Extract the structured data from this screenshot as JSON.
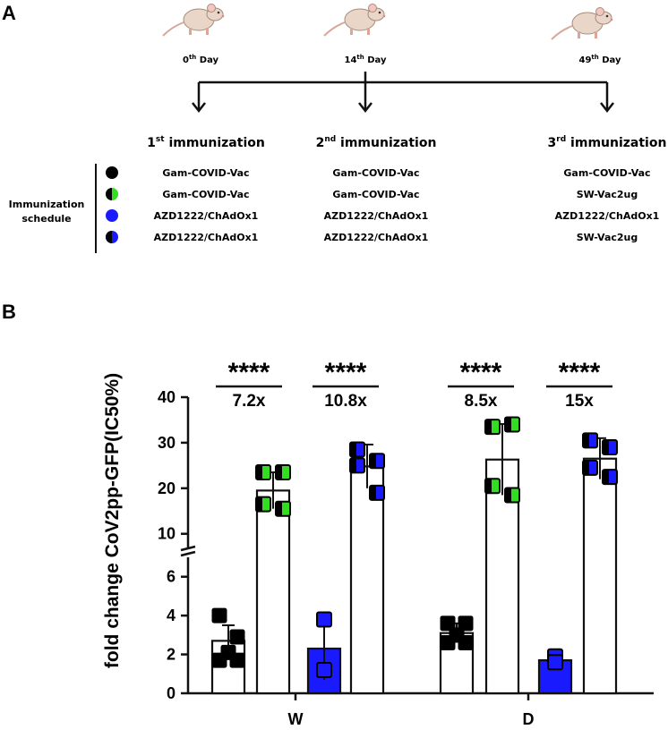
{
  "panel_a": {
    "label": "A",
    "days": [
      {
        "num": "0",
        "sup": "th",
        "rest": " Day"
      },
      {
        "num": "14",
        "sup": "th",
        "rest": " Day"
      },
      {
        "num": "49",
        "sup": "th",
        "rest": " Day"
      }
    ],
    "immunizations": [
      {
        "num": "1",
        "sup": "st",
        "rest": " immunization"
      },
      {
        "num": "2",
        "sup": "nd",
        "rest": " immunization"
      },
      {
        "num": "3",
        "sup": "rd",
        "rest": " immunization"
      }
    ],
    "schedule_label_line1": "Immunization",
    "schedule_label_line2": "schedule",
    "rows": [
      {
        "marker": "black",
        "colors": [
          "#000000",
          "#000000"
        ],
        "first": "Gam-COVID-Vac",
        "second": "Gam-COVID-Vac",
        "third": "Gam-COVID-Vac"
      },
      {
        "marker": "black-green",
        "colors": [
          "#000000",
          "#33dd22"
        ],
        "first": "Gam-COVID-Vac",
        "second": "Gam-COVID-Vac",
        "third": "SW-Vac2ug"
      },
      {
        "marker": "blue",
        "colors": [
          "#1a1aff",
          "#1a1aff"
        ],
        "first": "AZD1222/ChAdOx1",
        "second": "AZD1222/ChAdOx1",
        "third": "AZD1222/ChAdOx1"
      },
      {
        "marker": "black-blue",
        "colors": [
          "#000000",
          "#1a1aff"
        ],
        "first": "AZD1222/ChAdOx1",
        "second": "AZD1222/ChAdOx1",
        "third": "SW-Vac2ug"
      }
    ]
  },
  "chart_data": {
    "type": "bar",
    "panel_label": "B",
    "ylabel": "fold change CoV2pp-GFP(IC50%)",
    "y_axis_segments": [
      {
        "range": [
          0,
          7
        ],
        "ticks": [
          0,
          2,
          4,
          6
        ]
      },
      {
        "range": [
          7,
          40
        ],
        "ticks": [
          10,
          20,
          30,
          40
        ]
      }
    ],
    "categories": [
      "W",
      "D"
    ],
    "bars": [
      {
        "group": "W",
        "series": "Gam-COVID-Vac x3",
        "mean": 2.7,
        "sd": 0.8,
        "fill": "#ffffff",
        "points": [
          {
            "v": 4.0,
            "c": "#000000"
          },
          {
            "v": 2.9,
            "c": "#000000"
          },
          {
            "v": 2.1,
            "c": "#000000"
          },
          {
            "v": 1.7,
            "c": "#000000"
          },
          {
            "v": 1.7,
            "c": "#000000"
          }
        ]
      },
      {
        "group": "W",
        "series": "Gam-COVID-Vac x2 + SW-Vac2ug",
        "mean": 19.5,
        "sd": 4.0,
        "fill": "#ffffff",
        "points": [
          {
            "v": 23.5,
            "c": "#33dd22"
          },
          {
            "v": 23.5,
            "c": "#33dd22"
          },
          {
            "v": 16.5,
            "c": "#33dd22"
          },
          {
            "v": 15.5,
            "c": "#33dd22"
          }
        ]
      },
      {
        "group": "W",
        "series": "AZD1222/ChAdOx1 x3",
        "mean": 2.3,
        "sd": 1.6,
        "fill": "#1a1aff",
        "points": [
          {
            "v": 3.8,
            "c": "#1a1aff"
          },
          {
            "v": 1.2,
            "c": "#1a1aff"
          }
        ]
      },
      {
        "group": "W",
        "series": "AZD1222/ChAdOx1 x2 + SW-Vac2ug",
        "mean": 24.8,
        "sd": 4.8,
        "fill": "#ffffff",
        "points": [
          {
            "v": 28.5,
            "c": "#1a1aff"
          },
          {
            "v": 26.0,
            "c": "#1a1aff"
          },
          {
            "v": 25.0,
            "c": "#1a1aff"
          },
          {
            "v": 19.0,
            "c": "#1a1aff"
          }
        ]
      },
      {
        "group": "D",
        "series": "Gam-COVID-Vac x3",
        "mean": 3.1,
        "sd": 0.5,
        "fill": "#ffffff",
        "points": [
          {
            "v": 3.6,
            "c": "#000000"
          },
          {
            "v": 3.6,
            "c": "#000000"
          },
          {
            "v": 3.0,
            "c": "#000000"
          },
          {
            "v": 2.6,
            "c": "#000000"
          },
          {
            "v": 2.6,
            "c": "#000000"
          }
        ]
      },
      {
        "group": "D",
        "series": "Gam-COVID-Vac x2 + SW-Vac2ug",
        "mean": 26.3,
        "sd": 7.8,
        "fill": "#ffffff",
        "points": [
          {
            "v": 33.5,
            "c": "#33dd22"
          },
          {
            "v": 34.0,
            "c": "#33dd22"
          },
          {
            "v": 20.5,
            "c": "#33dd22"
          },
          {
            "v": 18.5,
            "c": "#33dd22"
          }
        ]
      },
      {
        "group": "D",
        "series": "AZD1222/ChAdOx1 x3",
        "mean": 1.7,
        "sd": 0.25,
        "fill": "#1a1aff",
        "points": [
          {
            "v": 1.9,
            "c": "#1a1aff"
          },
          {
            "v": 1.6,
            "c": "#1a1aff"
          }
        ]
      },
      {
        "group": "D",
        "series": "AZD1222/ChAdOx1 x2 + SW-Vac2ug",
        "mean": 26.5,
        "sd": 4.5,
        "fill": "#ffffff",
        "points": [
          {
            "v": 30.5,
            "c": "#1a1aff"
          },
          {
            "v": 29.0,
            "c": "#1a1aff"
          },
          {
            "v": 24.5,
            "c": "#1a1aff"
          },
          {
            "v": 22.5,
            "c": "#1a1aff"
          }
        ]
      }
    ],
    "comparisons": [
      {
        "between": [
          0,
          1
        ],
        "stars": "****",
        "fold": "7.2x"
      },
      {
        "between": [
          2,
          3
        ],
        "stars": "****",
        "fold": "10.8x"
      },
      {
        "between": [
          4,
          5
        ],
        "stars": "****",
        "fold": "8.5x"
      },
      {
        "between": [
          6,
          7
        ],
        "stars": "****",
        "fold": "15x"
      }
    ]
  }
}
